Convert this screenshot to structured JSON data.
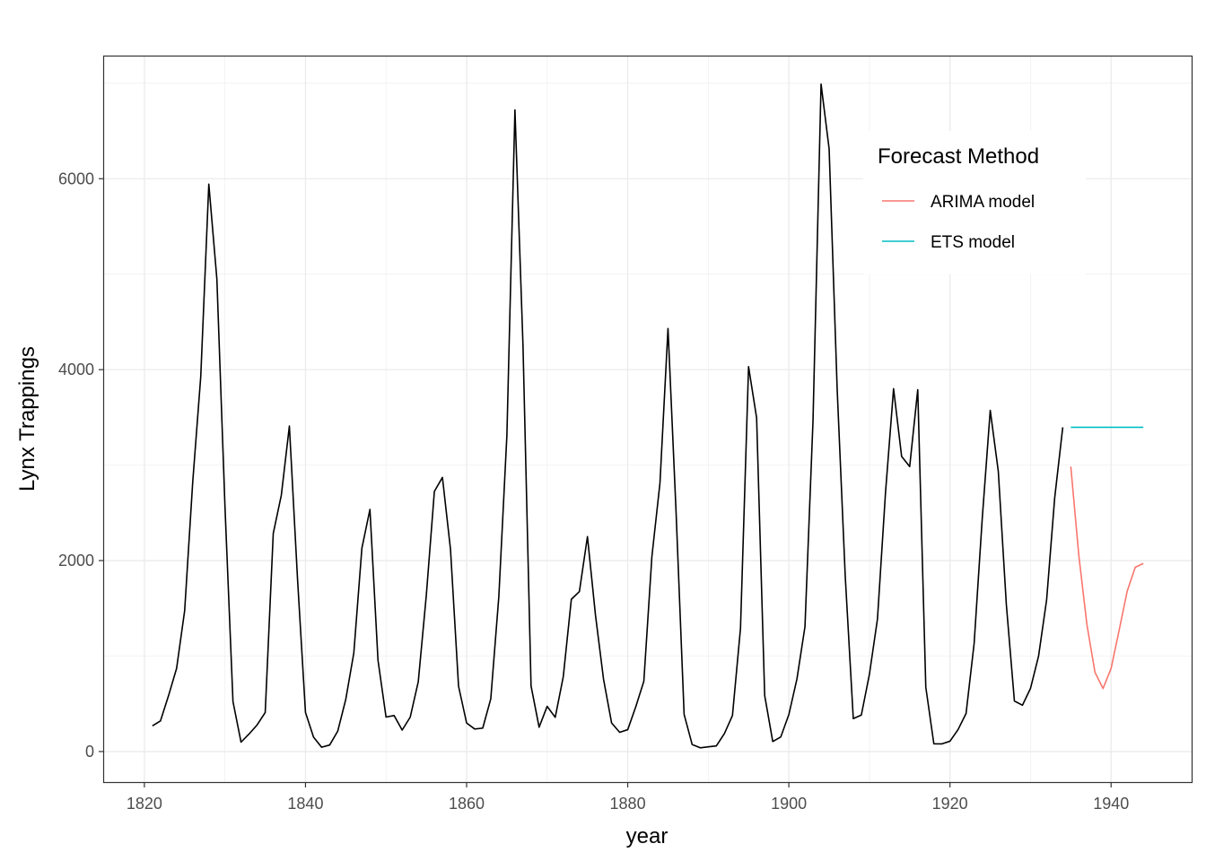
{
  "chart_data": {
    "type": "line",
    "xlabel": "year",
    "ylabel": "Lynx Trappings",
    "xlim": [
      1815,
      1950
    ],
    "ylim": [
      -320,
      7280
    ],
    "x_ticks": [
      1820,
      1840,
      1860,
      1880,
      1900,
      1920,
      1940
    ],
    "y_ticks": [
      0,
      2000,
      4000,
      6000
    ],
    "grid": true,
    "legend": {
      "title": "Forecast Method",
      "placement": "top-right inside",
      "entries": [
        {
          "label": "ARIMA model",
          "color": "#F8766D"
        },
        {
          "label": "ETS model",
          "color": "#00BFC4"
        }
      ]
    },
    "series": [
      {
        "color": "#000000",
        "x_start": 1821,
        "values": [
          269,
          321,
          585,
          871,
          1475,
          2821,
          3928,
          5943,
          4950,
          2577,
          523,
          98,
          184,
          279,
          409,
          2285,
          2685,
          3409,
          1824,
          409,
          151,
          45,
          68,
          213,
          546,
          1033,
          2129,
          2536,
          957,
          361,
          377,
          225,
          360,
          731,
          1638,
          2725,
          2871,
          2119,
          684,
          299,
          236,
          245,
          552,
          1623,
          3311,
          6721,
          4254,
          687,
          255,
          473,
          358,
          784,
          1594,
          1676,
          2251,
          1426,
          756,
          299,
          201,
          229,
          469,
          736,
          2042,
          2811,
          4431,
          2511,
          389,
          73,
          39,
          49,
          59,
          188,
          377,
          1292,
          4031,
          3495,
          587,
          105,
          153,
          387,
          758,
          1307,
          3465,
          6991,
          6313,
          3794,
          1836,
          345,
          382,
          808,
          1388,
          2713,
          3800,
          3091,
          2985,
          3790,
          674,
          81,
          80,
          108,
          229,
          399,
          1132,
          2432,
          3574,
          2935,
          1537,
          529,
          485,
          662,
          1000,
          1590,
          2657,
          3396
        ]
      },
      {
        "name": "ARIMA model",
        "color": "#F8766D",
        "x_start": 1935,
        "values": [
          2985,
          2050,
          1330,
          830,
          660,
          870,
          1270,
          1680,
          1930,
          1970
        ]
      },
      {
        "name": "ETS model",
        "color": "#00BFC4",
        "x_start": 1935,
        "values": [
          3396,
          3396,
          3396,
          3396,
          3396,
          3396,
          3396,
          3396,
          3396,
          3396
        ]
      }
    ]
  }
}
